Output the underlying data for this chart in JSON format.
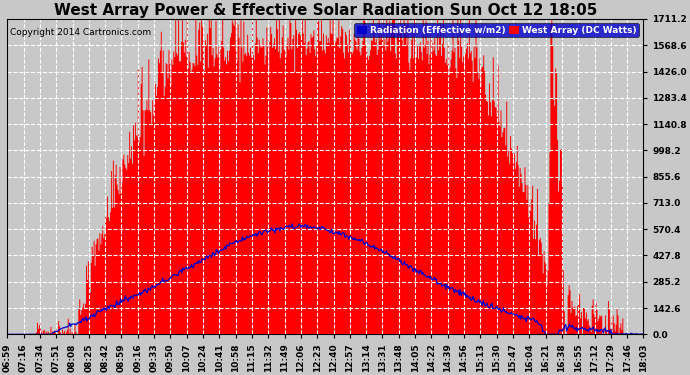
{
  "title": "West Array Power & Effective Solar Radiation Sun Oct 12 18:05",
  "copyright": "Copyright 2014 Cartronics.com",
  "legend_radiation": "Radiation (Effective w/m2)",
  "legend_westarray": "West Array (DC Watts)",
  "ylabel_right_values": [
    0.0,
    142.6,
    285.2,
    427.8,
    570.4,
    713.0,
    855.6,
    998.2,
    1140.8,
    1283.4,
    1426.0,
    1568.6,
    1711.2
  ],
  "ymax": 1711.2,
  "ymin": 0.0,
  "background_color": "#c8c8c8",
  "plot_background": "#c8c8c8",
  "grid_color": "#ffffff",
  "grid_style": "--",
  "radiation_color": "#0000cc",
  "westarray_fill_color": "red",
  "title_fontsize": 11,
  "tick_label_fontsize": 6.5,
  "num_points": 664,
  "xtick_labels": [
    "06:59",
    "07:16",
    "07:34",
    "07:51",
    "08:08",
    "08:25",
    "08:42",
    "08:59",
    "09:16",
    "09:33",
    "09:50",
    "10:07",
    "10:24",
    "10:41",
    "10:58",
    "11:15",
    "11:32",
    "11:49",
    "12:06",
    "12:23",
    "12:40",
    "12:57",
    "13:14",
    "13:31",
    "13:48",
    "14:05",
    "14:22",
    "14:39",
    "14:56",
    "15:13",
    "15:30",
    "15:47",
    "16:04",
    "16:21",
    "16:38",
    "16:55",
    "17:12",
    "17:29",
    "17:46",
    "18:03"
  ]
}
